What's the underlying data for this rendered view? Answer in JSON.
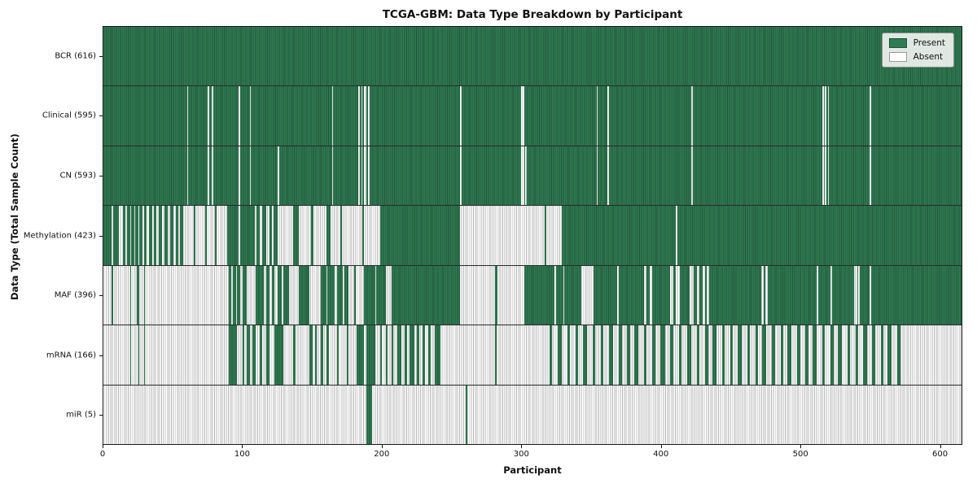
{
  "chart_data": {
    "type": "heatmap",
    "title": "TCGA-GBM: Data Type Breakdown by Participant",
    "xlabel": "Participant",
    "ylabel": "Data Type (Total Sample Count)",
    "x_max": 616,
    "x_ticks": [
      0,
      100,
      200,
      300,
      400,
      500,
      600
    ],
    "grid": false,
    "legend_position": "upper right",
    "legend": [
      {
        "label": "Present",
        "color": "#2f7b52"
      },
      {
        "label": "Absent",
        "color": "#ffffff"
      }
    ],
    "colors": {
      "present": "#2f7b52",
      "present_edge": "#215339",
      "absent": "#fdfdfd",
      "absent_edge": "#b9b9b9",
      "border": "#1a1a1a"
    },
    "rows": [
      {
        "label": "BCR (616)",
        "name": "BCR",
        "present_count": 616,
        "present_runs": [
          [
            0,
            616
          ]
        ]
      },
      {
        "label": "Clinical (595)",
        "name": "Clinical",
        "present_count": 595,
        "present_runs": [
          [
            0,
            60
          ],
          [
            61,
            75
          ],
          [
            76,
            78
          ],
          [
            79,
            97
          ],
          [
            98,
            105
          ],
          [
            106,
            164
          ],
          [
            165,
            183
          ],
          [
            184,
            185
          ],
          [
            186,
            187
          ],
          [
            189,
            190
          ],
          [
            191,
            256
          ],
          [
            257,
            300
          ],
          [
            302,
            354
          ],
          [
            355,
            362
          ],
          [
            363,
            422
          ],
          [
            423,
            516
          ],
          [
            517,
            518
          ],
          [
            519,
            520
          ],
          [
            521,
            550
          ],
          [
            551,
            616
          ]
        ]
      },
      {
        "label": "CN (593)",
        "name": "CN",
        "present_count": 593,
        "present_runs": [
          [
            0,
            60
          ],
          [
            61,
            75
          ],
          [
            76,
            78
          ],
          [
            79,
            97
          ],
          [
            98,
            105
          ],
          [
            106,
            125
          ],
          [
            126,
            164
          ],
          [
            165,
            183
          ],
          [
            184,
            185
          ],
          [
            186,
            187
          ],
          [
            189,
            190
          ],
          [
            191,
            256
          ],
          [
            257,
            300
          ],
          [
            302,
            303
          ],
          [
            304,
            354
          ],
          [
            355,
            362
          ],
          [
            363,
            422
          ],
          [
            423,
            516
          ],
          [
            517,
            518
          ],
          [
            519,
            520
          ],
          [
            521,
            550
          ],
          [
            551,
            616
          ]
        ]
      },
      {
        "label": "Methylation (423)",
        "name": "Methylation",
        "present_count": 423,
        "present_runs": [
          [
            0,
            6
          ],
          [
            7,
            11
          ],
          [
            14,
            16
          ],
          [
            17,
            19
          ],
          [
            20,
            22
          ],
          [
            23,
            25
          ],
          [
            26,
            28
          ],
          [
            29,
            31
          ],
          [
            33,
            35
          ],
          [
            36,
            38
          ],
          [
            40,
            42
          ],
          [
            44,
            46
          ],
          [
            48,
            50
          ],
          [
            52,
            54
          ],
          [
            55,
            57
          ],
          [
            65,
            66
          ],
          [
            73,
            74
          ],
          [
            80,
            81
          ],
          [
            89,
            97
          ],
          [
            98,
            109
          ],
          [
            110,
            112
          ],
          [
            114,
            117
          ],
          [
            119,
            121
          ],
          [
            122,
            125
          ],
          [
            136,
            140
          ],
          [
            149,
            151
          ],
          [
            160,
            163
          ],
          [
            170,
            171
          ],
          [
            186,
            187
          ],
          [
            199,
            256
          ],
          [
            317,
            318
          ],
          [
            329,
            411
          ],
          [
            412,
            616
          ]
        ]
      },
      {
        "label": "MAF (396)",
        "name": "MAF",
        "present_count": 396,
        "present_runs": [
          [
            6,
            7
          ],
          [
            19,
            20
          ],
          [
            24,
            26
          ],
          [
            29,
            30
          ],
          [
            90,
            92
          ],
          [
            93,
            95
          ],
          [
            96,
            98
          ],
          [
            100,
            103
          ],
          [
            109,
            115
          ],
          [
            117,
            119
          ],
          [
            121,
            123
          ],
          [
            125,
            128
          ],
          [
            129,
            133
          ],
          [
            140,
            148
          ],
          [
            156,
            160
          ],
          [
            161,
            166
          ],
          [
            168,
            172
          ],
          [
            173,
            176
          ],
          [
            180,
            181
          ],
          [
            187,
            195
          ],
          [
            196,
            203
          ],
          [
            207,
            256
          ],
          [
            281,
            283
          ],
          [
            302,
            324
          ],
          [
            325,
            330
          ],
          [
            331,
            343
          ],
          [
            352,
            369
          ],
          [
            370,
            388
          ],
          [
            390,
            392
          ],
          [
            394,
            407
          ],
          [
            409,
            411
          ],
          [
            414,
            421
          ],
          [
            424,
            426
          ],
          [
            428,
            430
          ],
          [
            432,
            433
          ],
          [
            435,
            472
          ],
          [
            474,
            475
          ],
          [
            477,
            512
          ],
          [
            513,
            522
          ],
          [
            523,
            539
          ],
          [
            541,
            542
          ],
          [
            543,
            550
          ],
          [
            551,
            616
          ]
        ]
      },
      {
        "label": "mRNA (166)",
        "name": "mRNA",
        "present_count": 166,
        "present_runs": [
          [
            19,
            20
          ],
          [
            25,
            26
          ],
          [
            29,
            30
          ],
          [
            90,
            96
          ],
          [
            100,
            101
          ],
          [
            103,
            105
          ],
          [
            107,
            109
          ],
          [
            112,
            114
          ],
          [
            117,
            119
          ],
          [
            123,
            129
          ],
          [
            136,
            138
          ],
          [
            148,
            150
          ],
          [
            152,
            153
          ],
          [
            156,
            158
          ],
          [
            160,
            162
          ],
          [
            168,
            169
          ],
          [
            175,
            176
          ],
          [
            182,
            187
          ],
          [
            189,
            195
          ],
          [
            199,
            200
          ],
          [
            203,
            204
          ],
          [
            207,
            208
          ],
          [
            211,
            214
          ],
          [
            216,
            218
          ],
          [
            220,
            223
          ],
          [
            225,
            227
          ],
          [
            229,
            231
          ],
          [
            233,
            235
          ],
          [
            238,
            242
          ],
          [
            281,
            282
          ],
          [
            320,
            322
          ],
          [
            326,
            329
          ],
          [
            333,
            335
          ],
          [
            339,
            341
          ],
          [
            344,
            347
          ],
          [
            351,
            353
          ],
          [
            357,
            359
          ],
          [
            363,
            366
          ],
          [
            370,
            372
          ],
          [
            376,
            378
          ],
          [
            381,
            384
          ],
          [
            388,
            390
          ],
          [
            394,
            396
          ],
          [
            400,
            403
          ],
          [
            407,
            409
          ],
          [
            413,
            415
          ],
          [
            419,
            422
          ],
          [
            426,
            428
          ],
          [
            432,
            434
          ],
          [
            437,
            440
          ],
          [
            444,
            446
          ],
          [
            450,
            452
          ],
          [
            455,
            458
          ],
          [
            462,
            464
          ],
          [
            468,
            470
          ],
          [
            473,
            476
          ],
          [
            480,
            482
          ],
          [
            486,
            488
          ],
          [
            491,
            494
          ],
          [
            498,
            500
          ],
          [
            504,
            506
          ],
          [
            509,
            512
          ],
          [
            516,
            518
          ],
          [
            522,
            524
          ],
          [
            527,
            530
          ],
          [
            534,
            536
          ],
          [
            540,
            542
          ],
          [
            545,
            548
          ],
          [
            552,
            554
          ],
          [
            558,
            560
          ],
          [
            563,
            566
          ],
          [
            570,
            572
          ]
        ]
      },
      {
        "label": "miR (5)",
        "name": "miR",
        "present_count": 5,
        "present_runs": [
          [
            189,
            193
          ],
          [
            260,
            261
          ]
        ]
      }
    ]
  }
}
